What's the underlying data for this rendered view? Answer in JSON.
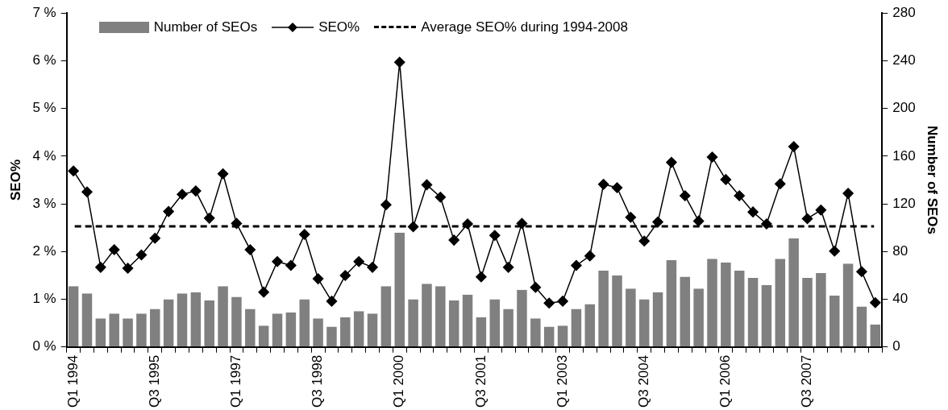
{
  "chart_data": {
    "type": "bar",
    "ylabel": "SEO%",
    "y2label": "Number of SEOs",
    "categories": [
      "Q1 1994",
      null,
      null,
      null,
      null,
      null,
      "Q3 1995",
      null,
      null,
      null,
      null,
      null,
      "Q1 1997",
      null,
      null,
      null,
      null,
      null,
      "Q3 1998",
      null,
      null,
      null,
      null,
      null,
      "Q1 2000",
      null,
      null,
      null,
      null,
      null,
      "Q3 2001",
      null,
      null,
      null,
      null,
      null,
      "Q1 2003",
      null,
      null,
      null,
      null,
      null,
      "Q3 2004",
      null,
      null,
      null,
      null,
      null,
      "Q1 2006",
      null,
      null,
      null,
      null,
      null,
      "Q3 2007",
      null,
      null,
      null,
      null,
      null
    ],
    "series": [
      {
        "name": "Number of SEOs",
        "axis": "y2",
        "color": "#808080",
        "values": [
          51,
          45,
          24,
          28,
          24,
          28,
          32,
          40,
          45,
          46,
          39,
          51,
          42,
          32,
          18,
          28,
          29,
          40,
          24,
          17,
          25,
          30,
          28,
          51,
          96,
          40,
          53,
          51,
          39,
          44,
          25,
          40,
          32,
          48,
          24,
          17,
          18,
          32,
          36,
          64,
          60,
          49,
          40,
          46,
          73,
          59,
          49,
          74,
          71,
          64,
          58,
          52,
          74,
          91,
          58,
          62,
          43,
          70,
          34,
          19
        ]
      },
      {
        "name": "SEO%",
        "type": "line",
        "color": "#000000",
        "marker": "diamond",
        "line_style": "solid",
        "values": [
          3.69,
          3.25,
          1.67,
          2.04,
          1.65,
          1.93,
          2.28,
          2.84,
          3.2,
          3.27,
          2.7,
          3.63,
          2.59,
          2.04,
          1.15,
          1.79,
          1.71,
          2.36,
          1.43,
          0.96,
          1.5,
          1.79,
          1.67,
          2.98,
          5.97,
          2.52,
          3.4,
          3.14,
          2.24,
          2.58,
          1.47,
          2.34,
          1.67,
          2.59,
          1.25,
          0.92,
          0.96,
          1.71,
          1.91,
          3.41,
          3.34,
          2.72,
          2.22,
          2.62,
          3.87,
          3.17,
          2.64,
          3.98,
          3.51,
          3.17,
          2.83,
          2.58,
          3.42,
          4.2,
          2.69,
          2.87,
          2.01,
          3.22,
          1.58,
          0.93
        ]
      }
    ],
    "ref_lines": [
      {
        "axis": "y",
        "value": 2.53,
        "label": "Average SEO% during 1994-2008",
        "color": "#000000",
        "line_style": "dashed"
      }
    ],
    "ylim": [
      0,
      7
    ],
    "yticks": [
      {
        "value": 0,
        "label": "0 %"
      },
      {
        "value": 1,
        "label": "1 %"
      },
      {
        "value": 2,
        "label": "2 %"
      },
      {
        "value": 3,
        "label": "3 %"
      },
      {
        "value": 4,
        "label": "4 %"
      },
      {
        "value": 5,
        "label": "5 %"
      },
      {
        "value": 6,
        "label": "6 %"
      },
      {
        "value": 7,
        "label": "7 %"
      }
    ],
    "y2lim": [
      0,
      280
    ],
    "y2ticks": [
      0,
      40,
      80,
      120,
      160,
      200,
      240,
      280
    ],
    "legend": "top left"
  }
}
